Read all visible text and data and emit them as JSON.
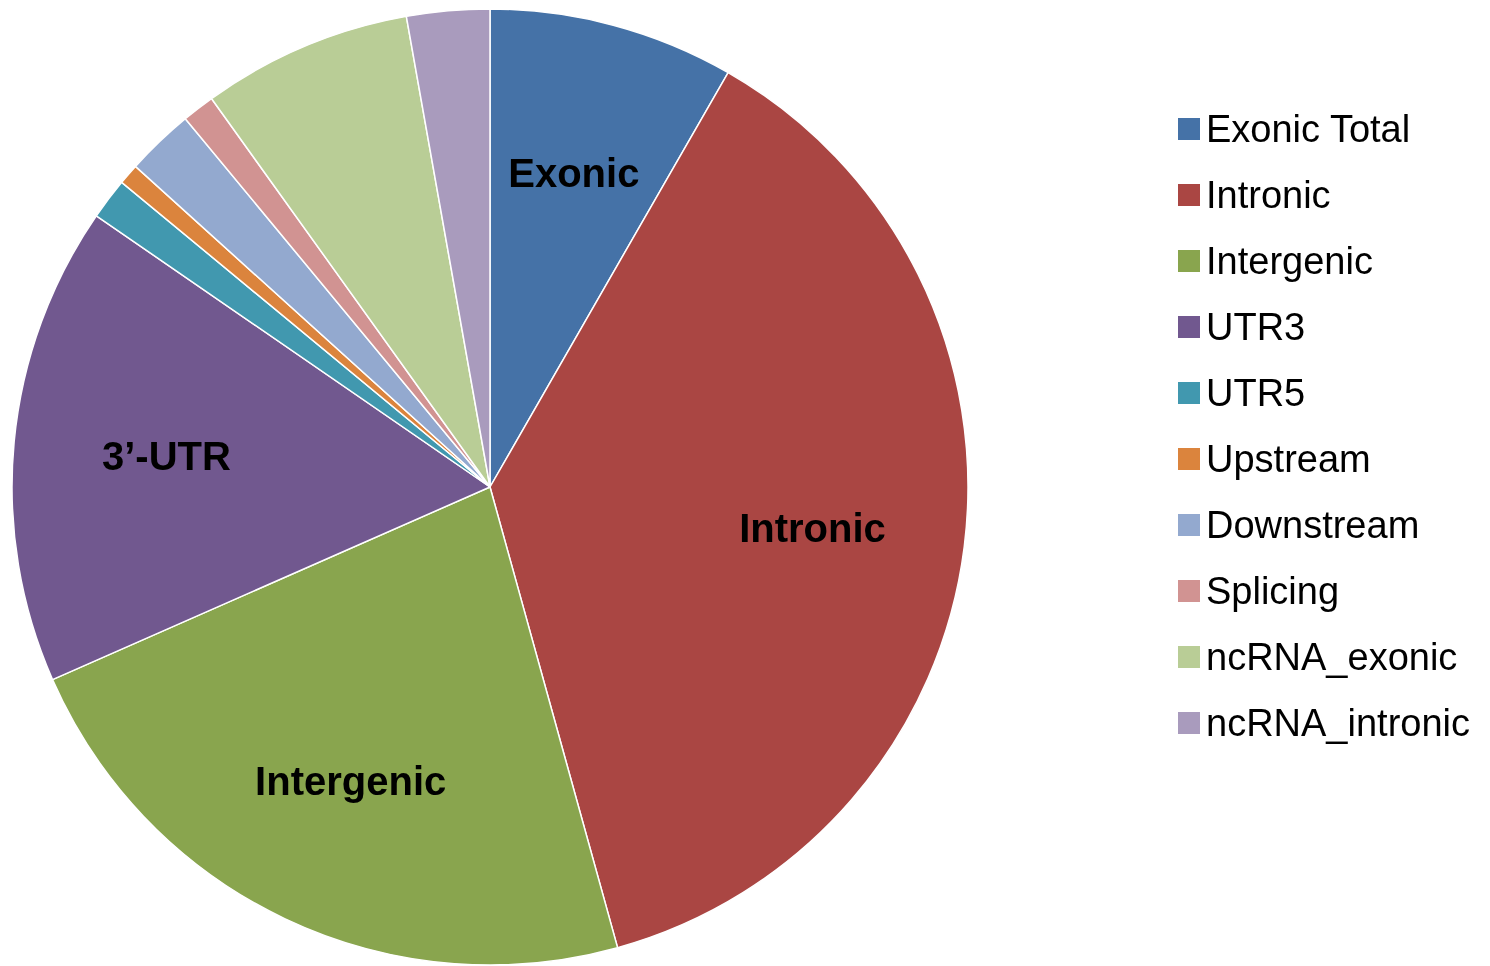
{
  "chart_data": {
    "type": "pie",
    "categories": [
      "Exonic Total",
      "Intronic",
      "Intergenic",
      "UTR3",
      "UTR5",
      "Upstream",
      "Downstream",
      "Splicing",
      "ncRNA_exonic",
      "ncRNA_intronic"
    ],
    "values": [
      8.3,
      37.4,
      22.7,
      16.2,
      1.4,
      0.7,
      2.3,
      1.1,
      7.1,
      2.8
    ],
    "colors": [
      "#4572a7",
      "#aa4643",
      "#89a54e",
      "#71588f",
      "#4198af",
      "#db843d",
      "#93a9cf",
      "#d19392",
      "#b9cd96",
      "#a99bbd"
    ],
    "annotations": [
      {
        "text": "Exonic",
        "x": "Exonic Total"
      },
      {
        "text": "Intronic",
        "x": "Intronic"
      },
      {
        "text": "Intergenic",
        "x": "Intergenic"
      },
      {
        "text": "3’-UTR",
        "x": "UTR3"
      }
    ],
    "legend": "right"
  }
}
